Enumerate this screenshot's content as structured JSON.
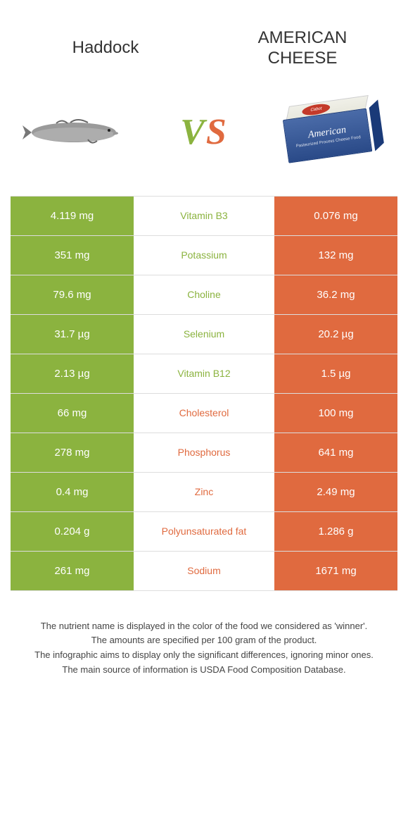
{
  "header": {
    "left_title": "Haddock",
    "right_title": "American cheese",
    "vs_v": "V",
    "vs_s": "S"
  },
  "colors": {
    "green": "#8bb33f",
    "orange": "#e06a3f",
    "text": "#333333",
    "border": "#dddddd"
  },
  "table": {
    "rows": [
      {
        "left": "4.119 mg",
        "nutrient": "Vitamin B3",
        "right": "0.076 mg",
        "winner": "left"
      },
      {
        "left": "351 mg",
        "nutrient": "Potassium",
        "right": "132 mg",
        "winner": "left"
      },
      {
        "left": "79.6 mg",
        "nutrient": "Choline",
        "right": "36.2 mg",
        "winner": "left"
      },
      {
        "left": "31.7 µg",
        "nutrient": "Selenium",
        "right": "20.2 µg",
        "winner": "left"
      },
      {
        "left": "2.13 µg",
        "nutrient": "Vitamin B12",
        "right": "1.5 µg",
        "winner": "left"
      },
      {
        "left": "66 mg",
        "nutrient": "Cholesterol",
        "right": "100 mg",
        "winner": "right"
      },
      {
        "left": "278 mg",
        "nutrient": "Phosphorus",
        "right": "641 mg",
        "winner": "right"
      },
      {
        "left": "0.4 mg",
        "nutrient": "Zinc",
        "right": "2.49 mg",
        "winner": "right"
      },
      {
        "left": "0.204 g",
        "nutrient": "Polyunsaturated fat",
        "right": "1.286 g",
        "winner": "right"
      },
      {
        "left": "261 mg",
        "nutrient": "Sodium",
        "right": "1671 mg",
        "winner": "right"
      }
    ]
  },
  "footer": {
    "line1": "The nutrient name is displayed in the color of the food we considered as 'winner'.",
    "line2": "The amounts are specified per 100 gram of the product.",
    "line3": "The infographic aims to display only the significant differences, ignoring minor ones.",
    "line4": "The main source of information is USDA Food Composition Database."
  },
  "cheese": {
    "brand": "American",
    "top_label": "Cabot",
    "sub": "Pasteurized Process Cheese Food"
  }
}
